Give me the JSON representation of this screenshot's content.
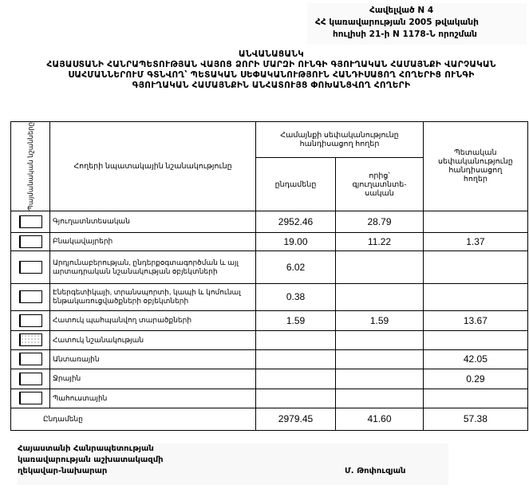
{
  "annex": {
    "line1": "Հավելված N 4",
    "line2": "ՀՀ կառավարության 2005 թվականի",
    "line3": "հուլիսի 21-ի N 1178-Ն որոշման"
  },
  "title": {
    "line1": "ԱՆՎԱՆԱՑԱՆԿ",
    "line2": "ՀԱՅԱՍՏԱՆԻ ՀԱՆՐԱՊԵՏՈՒԹՅԱՆ ՎԱՅՈՑ ՁՈՐԻ ՄԱՐԶԻ ՈՒՆԳԻ ԳՅՈՒՂԱԿԱՆ ՀԱՄԱՅՆՔԻ ՎԱՐՉԱԿԱՆ",
    "line3": "ՍԱՀՄԱՆՆԵՐՈՒՄ ԳՏՆՎՈՂ՝ ՊԵՏԱԿԱՆ ՍԵՓԱԿԱՆՈՒԹՅՈՒՆ ՀԱՆԴԻՍԱՑՈՂ ՀՈՂԵՐԻՑ ՈՒՆԳԻ",
    "line4": "ԳՅՈՒՂԱԿԱՆ ՀԱՄԱՅՆՔԻՆ ԱՆՀԱՏՈՒՅՑ ՓՈԽԱՆՑՎՈՂ ՀՈՂԵՐԻ"
  },
  "table": {
    "headers": {
      "symbols": "Պայմանական նշանները",
      "purpose": "Հողերի նպատակային նշանակությունը",
      "community": "Համայնքի սեփականությունը հանդիսացող հողեր",
      "total": "ընդամենը",
      "of_which": "որից՝ գյուղատնտե- սական",
      "state": "Պետական սեփականությունը հանդիսացող հողեր"
    },
    "rows": [
      {
        "label": "Գյուղատնտեսական",
        "total": "2952.46",
        "of_which": "28.79",
        "state": ""
      },
      {
        "label": "Բնակավայրերի",
        "total": "19.00",
        "of_which": "11.22",
        "state": "1.37"
      },
      {
        "label": "Արդյունաբերության, ընդերքօգտագործման և այլ արտադրական նշանակության օբյեկտների",
        "total": "6.02",
        "of_which": "",
        "state": ""
      },
      {
        "label": "Էներգետիկայի, տրանսպորտի, կապի և կոմունալ ենթակառուցվածքների օբյեկտների",
        "total": "0.38",
        "of_which": "",
        "state": ""
      },
      {
        "label": "Հատուկ պահպանվող տարածքների",
        "total": "1.59",
        "of_which": "1.59",
        "state": "13.67"
      },
      {
        "label": "Հատուկ նշանակության",
        "total": "",
        "of_which": "",
        "state": ""
      },
      {
        "label": "Անտառային",
        "total": "",
        "of_which": "",
        "state": "42.05"
      },
      {
        "label": "Ջրային",
        "total": "",
        "of_which": "",
        "state": "0.29"
      },
      {
        "label": "Պահուստային",
        "total": "",
        "of_which": "",
        "state": ""
      }
    ],
    "totals": {
      "label": "Ընդամենը",
      "total": "2979.45",
      "of_which": "41.60",
      "state": "57.38"
    }
  },
  "footer": {
    "line1": "Հայաստանի Հանրապետության",
    "line2": "կառավարության աշխատակազմի",
    "line3": "ղեկավար-նախարար",
    "signatory": "Մ. Թոփուզյան"
  }
}
